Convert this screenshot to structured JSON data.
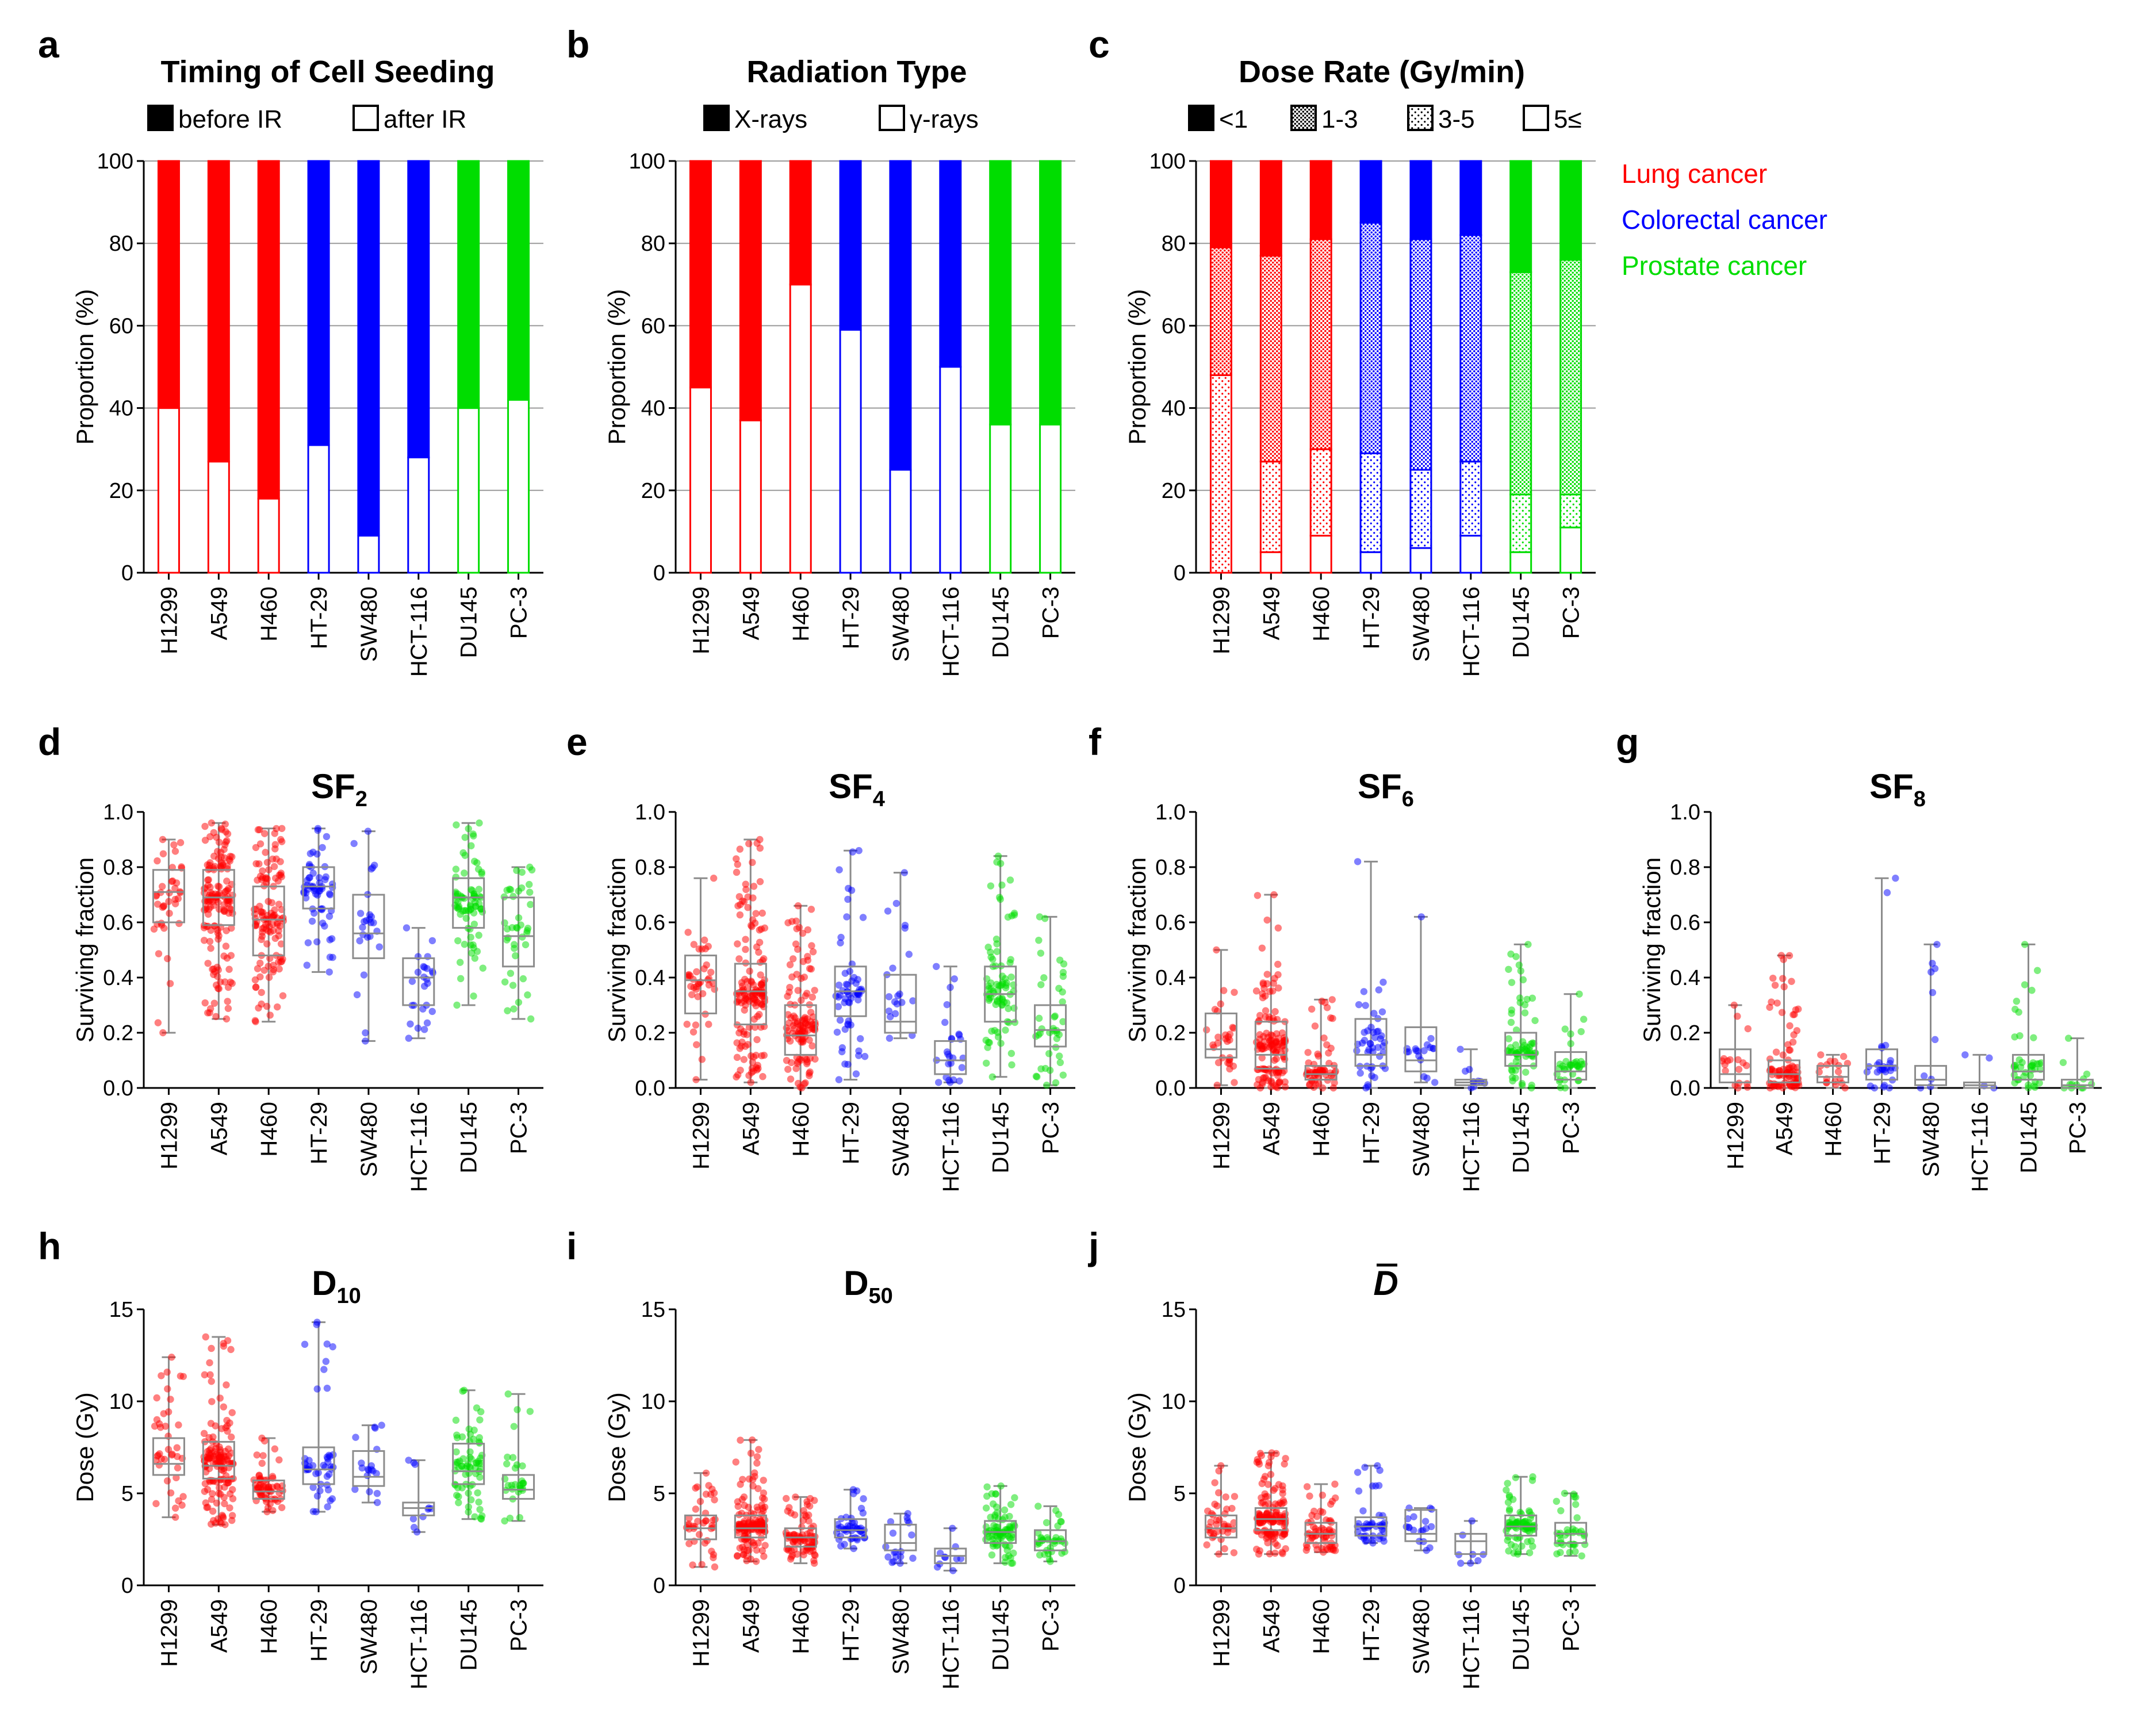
{
  "colors": {
    "lung": "#ff0000",
    "colorectal": "#0000ff",
    "prostate": "#00dd00"
  },
  "cancer_legend": [
    {
      "label": "Lung cancer",
      "color": "#ff0000"
    },
    {
      "label": "Colorectal cancer",
      "color": "#0000ff"
    },
    {
      "label": "Prostate cancer",
      "color": "#00dd00"
    }
  ],
  "cell_lines": [
    "H1299",
    "A549",
    "H460",
    "HT-29",
    "SW480",
    "HCT-116",
    "DU145",
    "PC-3"
  ],
  "cell_groups": [
    "lung",
    "lung",
    "lung",
    "colorectal",
    "colorectal",
    "colorectal",
    "prostate",
    "prostate"
  ],
  "chart_data": [
    {
      "panel": "a",
      "type": "bar",
      "stacked": true,
      "title": "Timing of Cell Seeding",
      "ylabel": "Proportion (%)",
      "ylim": [
        0,
        100
      ],
      "yticks": [
        0,
        20,
        40,
        60,
        80,
        100
      ],
      "legend": [
        {
          "label": "before IR",
          "pattern": "solid"
        },
        {
          "label": "after IR",
          "pattern": "empty"
        }
      ],
      "categories": [
        "H1299",
        "A549",
        "H460",
        "HT-29",
        "SW480",
        "HCT-116",
        "DU145",
        "PC-3"
      ],
      "series": [
        {
          "name": "after IR",
          "pattern": "empty",
          "values": [
            40,
            27,
            18,
            31,
            9,
            28,
            40,
            42
          ]
        },
        {
          "name": "before IR",
          "pattern": "solid",
          "values": [
            60,
            73,
            82,
            69,
            91,
            72,
            60,
            58
          ]
        }
      ]
    },
    {
      "panel": "b",
      "type": "bar",
      "stacked": true,
      "title": "Radiation Type",
      "ylabel": "Proportion (%)",
      "ylim": [
        0,
        100
      ],
      "yticks": [
        0,
        20,
        40,
        60,
        80,
        100
      ],
      "legend": [
        {
          "label": "X-rays",
          "pattern": "solid"
        },
        {
          "label": "γ-rays",
          "pattern": "empty"
        }
      ],
      "categories": [
        "H1299",
        "A549",
        "H460",
        "HT-29",
        "SW480",
        "HCT-116",
        "DU145",
        "PC-3"
      ],
      "series": [
        {
          "name": "γ-rays",
          "pattern": "empty",
          "values": [
            45,
            37,
            70,
            59,
            25,
            50,
            36,
            36
          ]
        },
        {
          "name": "X-rays",
          "pattern": "solid",
          "values": [
            55,
            63,
            30,
            41,
            75,
            50,
            64,
            64
          ]
        }
      ]
    },
    {
      "panel": "c",
      "type": "bar",
      "stacked": true,
      "title": "Dose Rate (Gy/min)",
      "ylabel": "Proportion (%)",
      "ylim": [
        0,
        100
      ],
      "yticks": [
        0,
        20,
        40,
        60,
        80,
        100
      ],
      "legend": [
        {
          "label": "<1",
          "pattern": "solid"
        },
        {
          "label": "1-3",
          "pattern": "dense"
        },
        {
          "label": "3-5",
          "pattern": "sparse"
        },
        {
          "label": "5≤",
          "pattern": "empty"
        }
      ],
      "categories": [
        "H1299",
        "A549",
        "H460",
        "HT-29",
        "SW480",
        "HCT-116",
        "DU145",
        "PC-3"
      ],
      "series": [
        {
          "name": "5≤",
          "pattern": "empty",
          "values": [
            0,
            5,
            9,
            5,
            6,
            9,
            5,
            11
          ]
        },
        {
          "name": "3-5",
          "pattern": "sparse",
          "values": [
            48,
            22,
            21,
            24,
            19,
            18,
            14,
            8
          ]
        },
        {
          "name": "1-3",
          "pattern": "dense",
          "values": [
            31,
            50,
            51,
            56,
            56,
            55,
            54,
            57
          ]
        },
        {
          "name": "<1",
          "pattern": "solid",
          "values": [
            21,
            23,
            19,
            15,
            19,
            18,
            27,
            24
          ]
        }
      ]
    },
    {
      "panel": "d",
      "type": "box",
      "title": "SF",
      "subscript": "2",
      "ylabel": "Surviving fraction",
      "ylim": [
        0,
        1
      ],
      "yticks": [
        "0.0",
        "0.2",
        "0.4",
        "0.6",
        "0.8",
        "1.0"
      ],
      "categories": [
        "H1299",
        "A549",
        "H460",
        "HT-29",
        "SW480",
        "HCT-116",
        "DU145",
        "PC-3"
      ],
      "boxes": [
        {
          "min": 0.2,
          "q1": 0.6,
          "median": 0.71,
          "q3": 0.79,
          "max": 0.9,
          "n": 40
        },
        {
          "min": 0.25,
          "q1": 0.59,
          "median": 0.69,
          "q3": 0.79,
          "max": 0.96,
          "n": 150
        },
        {
          "min": 0.24,
          "q1": 0.48,
          "median": 0.61,
          "q3": 0.73,
          "max": 0.94,
          "n": 120
        },
        {
          "min": 0.42,
          "q1": 0.65,
          "median": 0.73,
          "q3": 0.8,
          "max": 0.94,
          "n": 60
        },
        {
          "min": 0.17,
          "q1": 0.47,
          "median": 0.56,
          "q3": 0.7,
          "max": 0.93,
          "n": 25
        },
        {
          "min": 0.18,
          "q1": 0.3,
          "median": 0.4,
          "q3": 0.47,
          "max": 0.58,
          "n": 25
        },
        {
          "min": 0.3,
          "q1": 0.58,
          "median": 0.69,
          "q3": 0.76,
          "max": 0.96,
          "n": 80
        },
        {
          "min": 0.25,
          "q1": 0.44,
          "median": 0.55,
          "q3": 0.69,
          "max": 0.8,
          "n": 40
        }
      ]
    },
    {
      "panel": "e",
      "type": "box",
      "title": "SF",
      "subscript": "4",
      "ylabel": "Surviving fraction",
      "ylim": [
        0,
        1
      ],
      "yticks": [
        "0.0",
        "0.2",
        "0.4",
        "0.6",
        "0.8",
        "1.0"
      ],
      "categories": [
        "H1299",
        "A549",
        "H460",
        "HT-29",
        "SW480",
        "HCT-116",
        "DU145",
        "PC-3"
      ],
      "boxes": [
        {
          "min": 0.03,
          "q1": 0.27,
          "median": 0.39,
          "q3": 0.48,
          "max": 0.76,
          "n": 40
        },
        {
          "min": 0.02,
          "q1": 0.23,
          "median": 0.35,
          "q3": 0.45,
          "max": 0.9,
          "n": 150
        },
        {
          "min": 0.0,
          "q1": 0.12,
          "median": 0.19,
          "q3": 0.3,
          "max": 0.66,
          "n": 120
        },
        {
          "min": 0.03,
          "q1": 0.26,
          "median": 0.35,
          "q3": 0.44,
          "max": 0.86,
          "n": 60
        },
        {
          "min": 0.18,
          "q1": 0.2,
          "median": 0.24,
          "q3": 0.41,
          "max": 0.78,
          "n": 20
        },
        {
          "min": 0.02,
          "q1": 0.05,
          "median": 0.1,
          "q3": 0.17,
          "max": 0.44,
          "n": 25
        },
        {
          "min": 0.04,
          "q1": 0.24,
          "median": 0.34,
          "q3": 0.44,
          "max": 0.84,
          "n": 80
        },
        {
          "min": 0.01,
          "q1": 0.15,
          "median": 0.21,
          "q3": 0.3,
          "max": 0.62,
          "n": 40
        }
      ]
    },
    {
      "panel": "f",
      "type": "box",
      "title": "SF",
      "subscript": "6",
      "ylabel": "Surviving fraction",
      "ylim": [
        0,
        1
      ],
      "yticks": [
        "0.0",
        "0.2",
        "0.4",
        "0.6",
        "0.8",
        "1.0"
      ],
      "categories": [
        "H1299",
        "A549",
        "H460",
        "HT-29",
        "SW480",
        "HCT-116",
        "DU145",
        "PC-3"
      ],
      "boxes": [
        {
          "min": 0.01,
          "q1": 0.11,
          "median": 0.14,
          "q3": 0.27,
          "max": 0.5,
          "n": 30
        },
        {
          "min": 0.0,
          "q1": 0.07,
          "median": 0.12,
          "q3": 0.24,
          "max": 0.7,
          "n": 130
        },
        {
          "min": 0.0,
          "q1": 0.03,
          "median": 0.05,
          "q3": 0.08,
          "max": 0.32,
          "n": 60
        },
        {
          "min": 0.0,
          "q1": 0.08,
          "median": 0.12,
          "q3": 0.25,
          "max": 0.82,
          "n": 45
        },
        {
          "min": 0.02,
          "q1": 0.06,
          "median": 0.1,
          "q3": 0.22,
          "max": 0.62,
          "n": 18
        },
        {
          "min": 0.0,
          "q1": 0.01,
          "median": 0.02,
          "q3": 0.03,
          "max": 0.14,
          "n": 10
        },
        {
          "min": 0.0,
          "q1": 0.08,
          "median": 0.12,
          "q3": 0.2,
          "max": 0.52,
          "n": 70
        },
        {
          "min": 0.0,
          "q1": 0.03,
          "median": 0.06,
          "q3": 0.13,
          "max": 0.34,
          "n": 35
        }
      ]
    },
    {
      "panel": "g",
      "type": "box",
      "title": "SF",
      "subscript": "8",
      "ylabel": "Surviving fraction",
      "ylim": [
        0,
        1
      ],
      "yticks": [
        "0.0",
        "0.2",
        "0.4",
        "0.6",
        "0.8",
        "1.0"
      ],
      "categories": [
        "H1299",
        "A549",
        "H460",
        "HT-29",
        "SW480",
        "HCT-116",
        "DU145",
        "PC-3"
      ],
      "boxes": [
        {
          "min": 0.0,
          "q1": 0.02,
          "median": 0.05,
          "q3": 0.14,
          "max": 0.3,
          "n": 18
        },
        {
          "min": 0.0,
          "q1": 0.02,
          "median": 0.05,
          "q3": 0.1,
          "max": 0.48,
          "n": 90
        },
        {
          "min": 0.0,
          "q1": 0.02,
          "median": 0.04,
          "q3": 0.08,
          "max": 0.12,
          "n": 18
        },
        {
          "min": 0.0,
          "q1": 0.03,
          "median": 0.08,
          "q3": 0.14,
          "max": 0.76,
          "n": 28
        },
        {
          "min": 0.0,
          "q1": 0.01,
          "median": 0.03,
          "q3": 0.08,
          "max": 0.52,
          "n": 10
        },
        {
          "min": 0.0,
          "q1": 0.0,
          "median": 0.01,
          "q3": 0.02,
          "max": 0.12,
          "n": 4
        },
        {
          "min": 0.0,
          "q1": 0.03,
          "median": 0.06,
          "q3": 0.12,
          "max": 0.52,
          "n": 40
        },
        {
          "min": 0.0,
          "q1": 0.0,
          "median": 0.01,
          "q3": 0.03,
          "max": 0.18,
          "n": 12
        }
      ]
    },
    {
      "panel": "h",
      "type": "box",
      "title": "D",
      "subscript": "10",
      "ylabel": "Dose (Gy)",
      "ylim": [
        0,
        15
      ],
      "yticks": [
        "0",
        "5",
        "10",
        "15"
      ],
      "categories": [
        "H1299",
        "A549",
        "H460",
        "HT-29",
        "SW480",
        "HCT-116",
        "DU145",
        "PC-3"
      ],
      "boxes": [
        {
          "min": 3.7,
          "q1": 6.0,
          "median": 6.6,
          "q3": 8.0,
          "max": 12.4,
          "n": 40
        },
        {
          "min": 3.3,
          "q1": 5.8,
          "median": 6.5,
          "q3": 7.8,
          "max": 13.5,
          "n": 140
        },
        {
          "min": 4.0,
          "q1": 4.7,
          "median": 5.1,
          "q3": 5.7,
          "max": 8.0,
          "n": 60
        },
        {
          "min": 4.0,
          "q1": 5.5,
          "median": 6.3,
          "q3": 7.5,
          "max": 14.3,
          "n": 45
        },
        {
          "min": 4.5,
          "q1": 5.4,
          "median": 5.9,
          "q3": 7.3,
          "max": 8.7,
          "n": 18
        },
        {
          "min": 2.9,
          "q1": 3.8,
          "median": 4.2,
          "q3": 4.5,
          "max": 6.8,
          "n": 10
        },
        {
          "min": 3.6,
          "q1": 5.5,
          "median": 6.2,
          "q3": 7.7,
          "max": 10.6,
          "n": 70
        },
        {
          "min": 3.5,
          "q1": 4.7,
          "median": 5.2,
          "q3": 6.0,
          "max": 10.4,
          "n": 30
        }
      ]
    },
    {
      "panel": "i",
      "type": "box",
      "title": "D",
      "subscript": "50",
      "ylabel": "Dose (Gy)",
      "ylim": [
        0,
        15
      ],
      "yticks": [
        "0",
        "5",
        "10",
        "15"
      ],
      "categories": [
        "H1299",
        "A549",
        "H460",
        "HT-29",
        "SW480",
        "HCT-116",
        "DU145",
        "PC-3"
      ],
      "boxes": [
        {
          "min": 1.0,
          "q1": 2.5,
          "median": 3.1,
          "q3": 3.8,
          "max": 6.1,
          "n": 40
        },
        {
          "min": 1.3,
          "q1": 2.6,
          "median": 3.1,
          "q3": 3.8,
          "max": 7.9,
          "n": 140
        },
        {
          "min": 1.2,
          "q1": 2.1,
          "median": 2.6,
          "q3": 3.1,
          "max": 4.8,
          "n": 80
        },
        {
          "min": 2.0,
          "q1": 2.6,
          "median": 3.0,
          "q3": 3.6,
          "max": 5.2,
          "n": 45
        },
        {
          "min": 1.2,
          "q1": 1.9,
          "median": 2.3,
          "q3": 3.3,
          "max": 3.9,
          "n": 18
        },
        {
          "min": 0.8,
          "q1": 1.2,
          "median": 1.6,
          "q3": 2.0,
          "max": 3.1,
          "n": 10
        },
        {
          "min": 1.2,
          "q1": 2.3,
          "median": 2.9,
          "q3": 3.5,
          "max": 5.4,
          "n": 80
        },
        {
          "min": 1.3,
          "q1": 1.9,
          "median": 2.4,
          "q3": 3.0,
          "max": 4.3,
          "n": 35
        }
      ]
    },
    {
      "panel": "j",
      "type": "box",
      "title": "D",
      "title_overbar": true,
      "subscript": "",
      "ylabel": "Dose (Gy)",
      "ylim": [
        0,
        15
      ],
      "yticks": [
        "0",
        "5",
        "10",
        "15"
      ],
      "categories": [
        "H1299",
        "A549",
        "H460",
        "HT-29",
        "SW480",
        "HCT-116",
        "DU145",
        "PC-3"
      ],
      "boxes": [
        {
          "min": 1.7,
          "q1": 2.6,
          "median": 3.1,
          "q3": 3.8,
          "max": 6.5,
          "n": 40
        },
        {
          "min": 1.7,
          "q1": 3.0,
          "median": 3.6,
          "q3": 4.2,
          "max": 7.2,
          "n": 140
        },
        {
          "min": 1.8,
          "q1": 2.3,
          "median": 2.8,
          "q3": 3.4,
          "max": 5.5,
          "n": 60
        },
        {
          "min": 2.3,
          "q1": 2.7,
          "median": 3.2,
          "q3": 3.7,
          "max": 6.5,
          "n": 45
        },
        {
          "min": 1.9,
          "q1": 2.4,
          "median": 2.8,
          "q3": 4.1,
          "max": 4.2,
          "n": 18
        },
        {
          "min": 1.2,
          "q1": 1.7,
          "median": 2.4,
          "q3": 2.8,
          "max": 3.5,
          "n": 8
        },
        {
          "min": 1.7,
          "q1": 2.7,
          "median": 3.2,
          "q3": 3.8,
          "max": 5.9,
          "n": 80
        },
        {
          "min": 1.6,
          "q1": 2.3,
          "median": 2.8,
          "q3": 3.4,
          "max": 5.0,
          "n": 35
        }
      ]
    }
  ]
}
